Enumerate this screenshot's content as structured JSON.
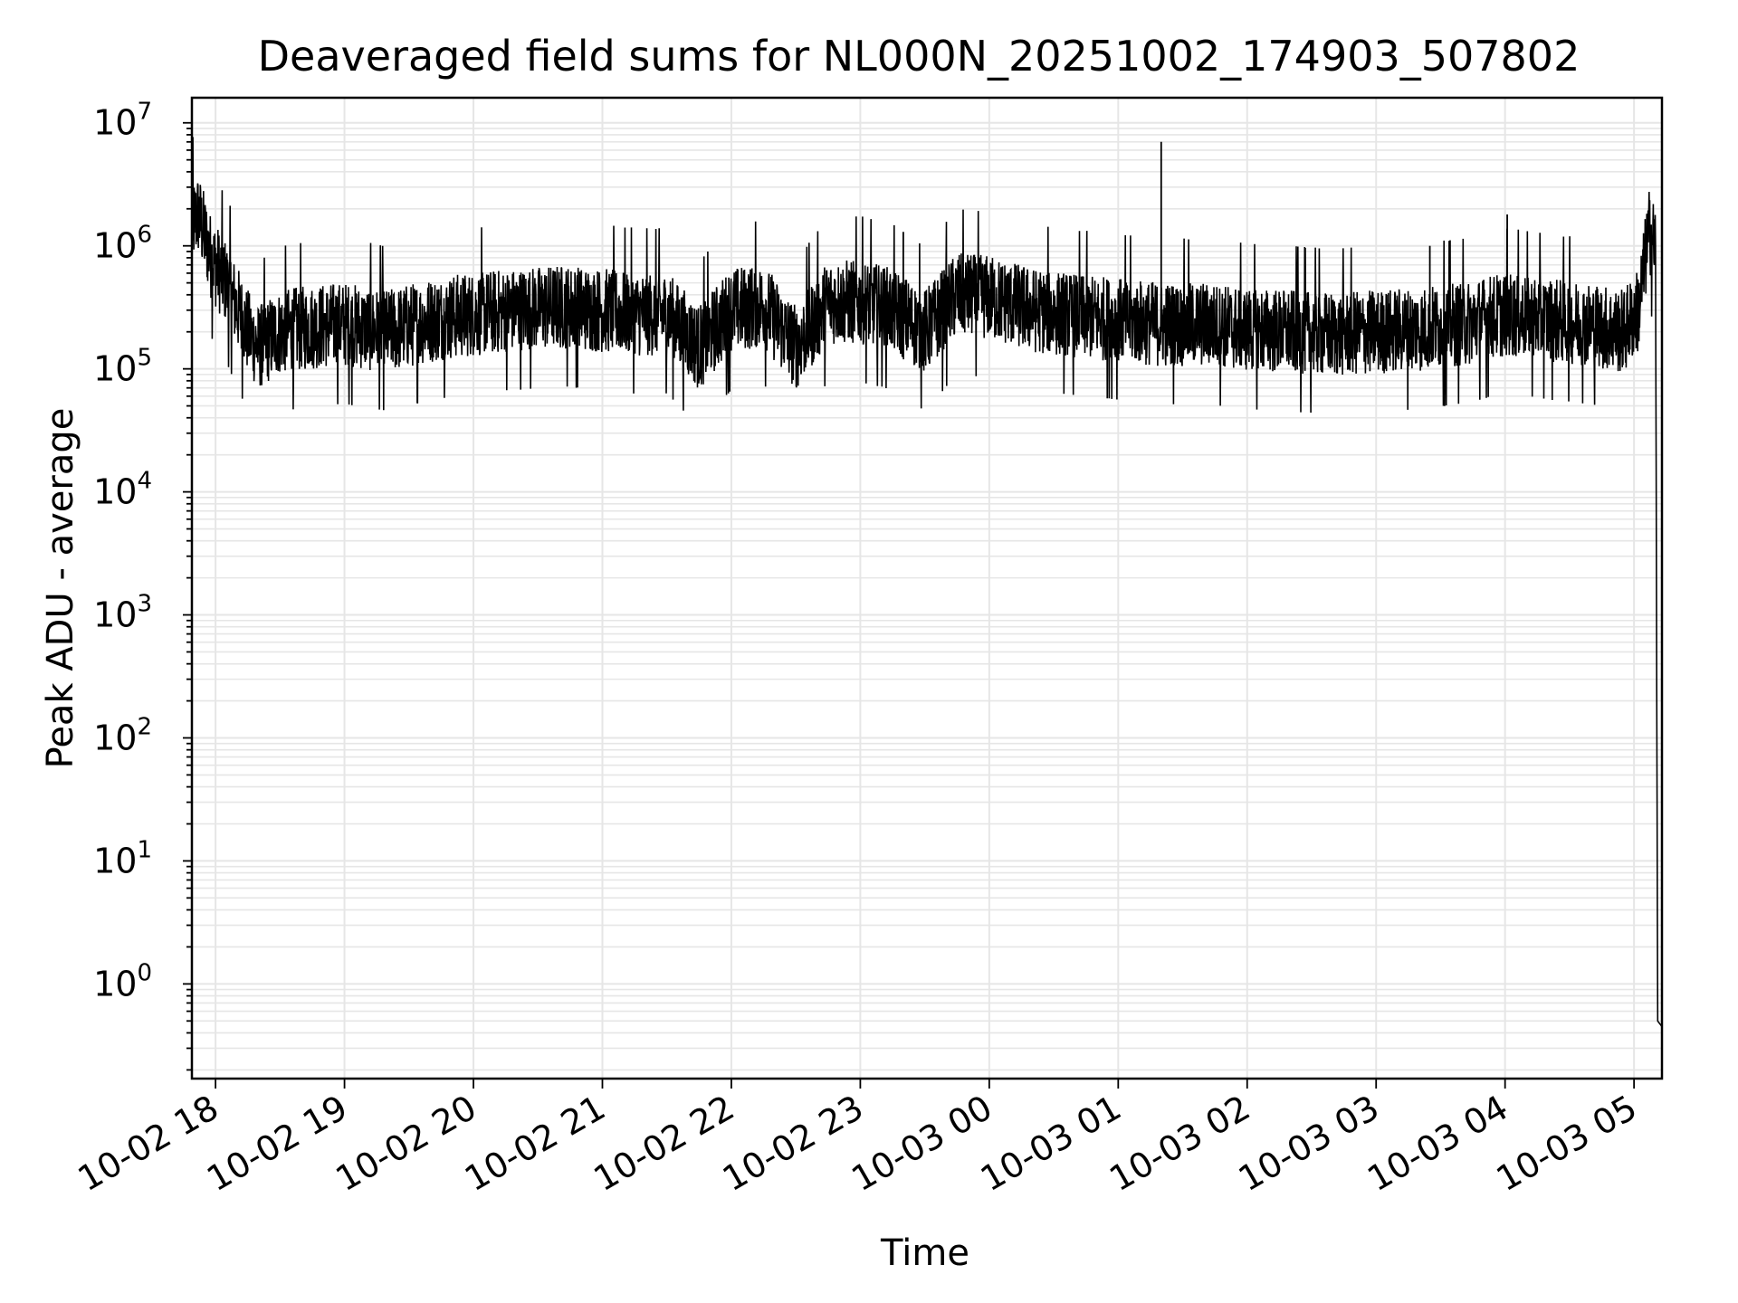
{
  "chart_data": {
    "type": "line",
    "title": "Deaveraged field sums for NL000N_20251002_174903_507802",
    "xlabel": "Time",
    "ylabel": "Peak ADU - average",
    "yscale": "log",
    "ylim": [
      0.17,
      16000000
    ],
    "xlim": [
      "2025-10-02 17:49",
      "2025-10-03 05:13"
    ],
    "grid": true,
    "line_color": "#000000",
    "grid_color": "#e6e6e6",
    "x_ticks": [
      "2025-10-02 18:00",
      "2025-10-02 19:00",
      "2025-10-02 20:00",
      "2025-10-02 21:00",
      "2025-10-02 22:00",
      "2025-10-02 23:00",
      "2025-10-03 00:00",
      "2025-10-03 01:00",
      "2025-10-03 02:00",
      "2025-10-03 03:00",
      "2025-10-03 04:00",
      "2025-10-03 05:00"
    ],
    "x_tick_labels": [
      "10-02 18",
      "10-02 19",
      "10-02 20",
      "10-02 21",
      "10-02 22",
      "10-02 23",
      "10-03 00",
      "10-03 01",
      "10-03 02",
      "10-03 03",
      "10-03 04",
      "10-03 05"
    ],
    "y_tick_exponents": [
      "0",
      "1",
      "2",
      "3",
      "4",
      "5",
      "6",
      "7"
    ],
    "y_tick_base": "10",
    "series": [
      {
        "x": [
          "2025-10-02 17:49",
          "2025-10-02 17:52",
          "2025-10-02 17:55",
          "2025-10-02 17:58",
          "2025-10-02 18:05",
          "2025-10-02 18:15",
          "2025-10-02 18:20",
          "2025-10-02 18:30",
          "2025-10-02 18:45",
          "2025-10-02 19:00",
          "2025-10-02 19:20",
          "2025-10-02 19:40",
          "2025-10-02 20:00",
          "2025-10-02 20:20",
          "2025-10-02 20:40",
          "2025-10-02 21:00",
          "2025-10-02 21:15",
          "2025-10-02 21:30",
          "2025-10-02 21:45",
          "2025-10-02 22:00",
          "2025-10-02 22:15",
          "2025-10-02 22:30",
          "2025-10-02 22:45",
          "2025-10-02 23:00",
          "2025-10-02 23:15",
          "2025-10-02 23:30",
          "2025-10-02 23:45",
          "2025-10-03 00:00",
          "2025-10-03 00:20",
          "2025-10-03 00:40",
          "2025-10-03 01:00",
          "2025-10-03 01:20",
          "2025-10-03 01:40",
          "2025-10-03 02:00",
          "2025-10-03 02:20",
          "2025-10-03 02:40",
          "2025-10-03 03:00",
          "2025-10-03 03:20",
          "2025-10-03 03:40",
          "2025-10-03 04:00",
          "2025-10-03 04:20",
          "2025-10-03 04:40",
          "2025-10-03 04:55",
          "2025-10-03 05:02",
          "2025-10-03 05:07",
          "2025-10-03 05:10",
          "2025-10-03 05:11",
          "2025-10-03 05:13"
        ],
        "y": [
          1500000,
          1800000,
          1200000,
          800000,
          500000,
          200000,
          150000,
          200000,
          220000,
          230000,
          200000,
          250000,
          280000,
          300000,
          320000,
          300000,
          280000,
          280000,
          150000,
          300000,
          330000,
          150000,
          350000,
          350000,
          300000,
          200000,
          400000,
          380000,
          300000,
          270000,
          250000,
          230000,
          230000,
          210000,
          200000,
          190000,
          200000,
          210000,
          230000,
          280000,
          250000,
          230000,
          200000,
          300000,
          1300000,
          1000000,
          0.5,
          0.45
        ]
      }
    ],
    "spikes": [
      {
        "x": "2025-10-03 01:20",
        "y": 7000000
      },
      {
        "x": "2025-10-03 04:01",
        "y": 1800000
      },
      {
        "x": "2025-10-02 23:20",
        "y": 1300000
      },
      {
        "x": "2025-10-03 03:25",
        "y": 1000000
      }
    ]
  }
}
